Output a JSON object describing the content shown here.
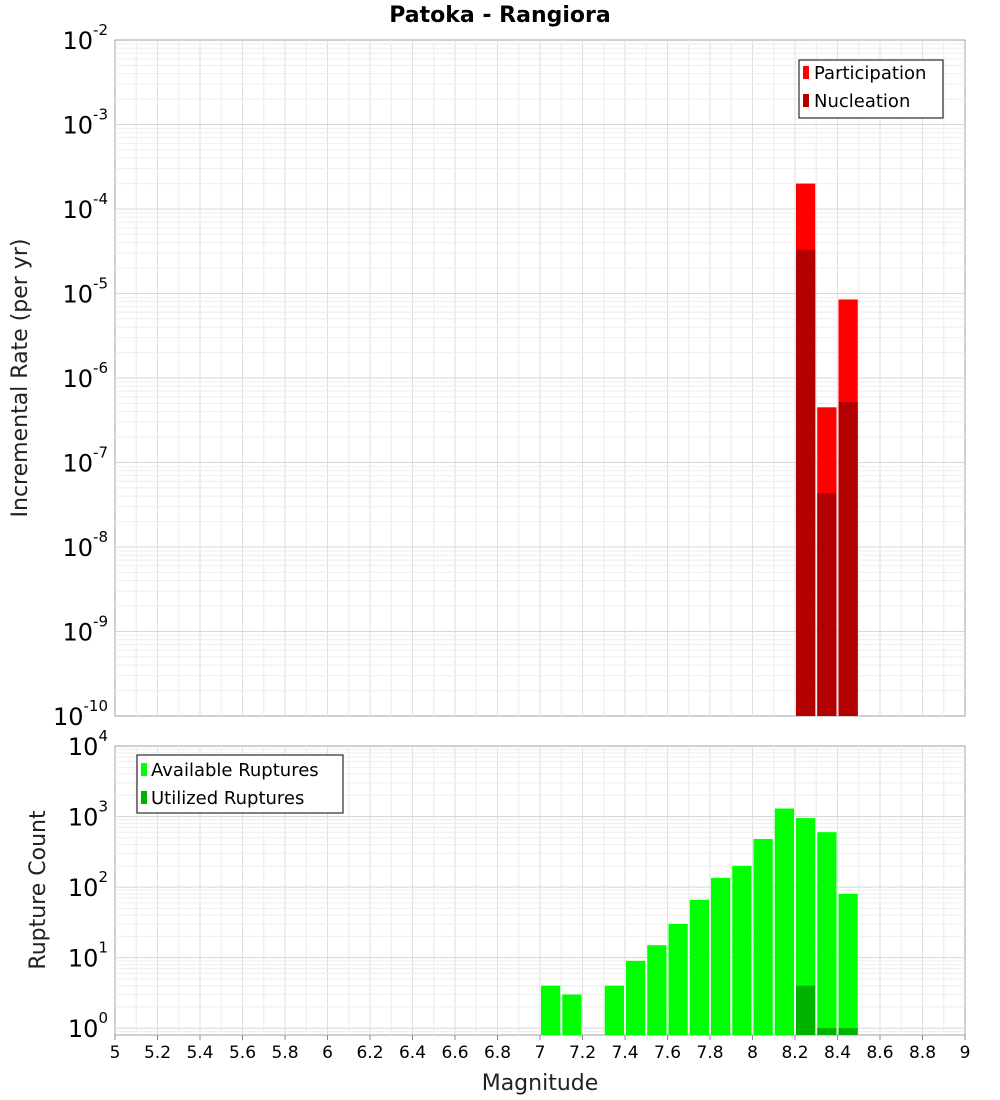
{
  "chart_data": [
    {
      "type": "bar",
      "title": "Patoka - Rangiora",
      "ylabel": "Incremental Rate (per yr)",
      "xlabel": "",
      "x_range": [
        5,
        9
      ],
      "y_scale": "log",
      "ylim": [
        1e-10,
        0.01
      ],
      "y_tick_exponents": [
        -10,
        -9,
        -8,
        -7,
        -6,
        -5,
        -4,
        -3,
        -2
      ],
      "grid": true,
      "legend_position": "top-right",
      "bar_width": 0.1,
      "series": [
        {
          "name": "Participation",
          "color": "#ff0000",
          "x": [
            8.25,
            8.35,
            8.45
          ],
          "values": [
            0.0002,
            4.5e-07,
            8.5e-06
          ]
        },
        {
          "name": "Nucleation",
          "color": "#b20000",
          "x": [
            8.25,
            8.35,
            8.45
          ],
          "values": [
            3.3e-05,
            4.3e-08,
            5.2e-07
          ]
        }
      ]
    },
    {
      "type": "bar",
      "title": "",
      "ylabel": "Rupture Count",
      "xlabel": "Magnitude",
      "x_range": [
        5,
        9
      ],
      "x_ticks": [
        "5",
        "5.2",
        "5.4",
        "5.6",
        "5.8",
        "6",
        "6.2",
        "6.4",
        "6.6",
        "6.8",
        "7",
        "7.2",
        "7.4",
        "7.6",
        "7.8",
        "8",
        "8.2",
        "8.4",
        "8.6",
        "8.8",
        "9"
      ],
      "y_scale": "log",
      "ylim": [
        0.8,
        10000
      ],
      "y_tick_exponents": [
        0,
        1,
        2,
        3,
        4
      ],
      "grid": true,
      "legend_position": "top-left",
      "bar_width": 0.1,
      "series": [
        {
          "name": "Available Ruptures",
          "color": "#00ff00",
          "x": [
            7.05,
            7.15,
            7.35,
            7.45,
            7.55,
            7.65,
            7.75,
            7.85,
            7.95,
            8.05,
            8.15,
            8.25,
            8.35,
            8.45
          ],
          "values": [
            4,
            3,
            4,
            9,
            15,
            30,
            66,
            135,
            200,
            480,
            1300,
            950,
            600,
            80
          ]
        },
        {
          "name": "Utilized Ruptures",
          "color": "#00b200",
          "x": [
            8.25,
            8.35,
            8.45
          ],
          "values": [
            4,
            1,
            1
          ]
        }
      ]
    }
  ]
}
